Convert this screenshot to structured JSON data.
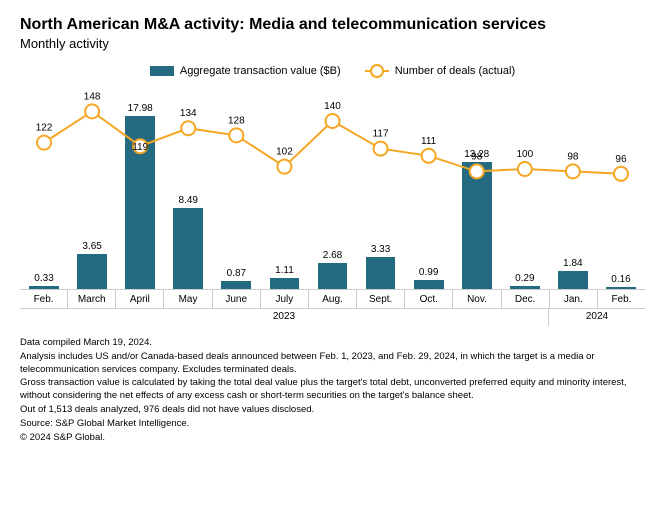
{
  "title": "North American M&A activity: Media and telecommunication services",
  "subtitle": "Monthly activity",
  "legend": {
    "bar_label": "Aggregate transaction value ($B)",
    "line_label": "Number of deals (actual)"
  },
  "chart": {
    "type": "bar+line",
    "bar_color": "#246b82",
    "line_color": "#f5a623",
    "point_fill": "#ffffff",
    "point_stroke": "#f5a623",
    "point_radius": 7,
    "line_width": 2,
    "bg": "#ffffff",
    "bar_ymax": 20,
    "line_ymax": 160,
    "categories": [
      "Feb.",
      "March",
      "April",
      "May",
      "June",
      "July",
      "Aug.",
      "Sept.",
      "Oct.",
      "Nov.",
      "Dec.",
      "Jan.",
      "Feb."
    ],
    "bar_values": [
      0.33,
      3.65,
      17.98,
      8.49,
      0.87,
      1.11,
      2.68,
      3.33,
      0.99,
      13.28,
      0.29,
      1.84,
      0.16
    ],
    "line_values": [
      122,
      148,
      119,
      134,
      128,
      102,
      140,
      117,
      111,
      98,
      100,
      98,
      96
    ],
    "year_groups": [
      {
        "label": "2023",
        "span": 11
      },
      {
        "label": "2024",
        "span": 2
      }
    ],
    "label_fontsize": 10
  },
  "footer": {
    "l1": "Data compiled March 19, 2024.",
    "l2": "Analysis includes US and/or Canada-based deals announced between Feb. 1, 2023, and Feb. 29, 2024, in which the target is a media or telecommunication services company. Excludes terminated deals.",
    "l3": "Gross transaction value is calculated by taking the total deal value plus the target's total debt, unconverted preferred equity and minority interest, without considering the net effects of any excess cash or short-term securities on the target's balance sheet.",
    "l4": "Out of 1,513 deals analyzed, 976 deals did not have values disclosed.",
    "l5": "Source: S&P Global Market Intelligence.",
    "l6": "© 2024 S&P Global."
  }
}
